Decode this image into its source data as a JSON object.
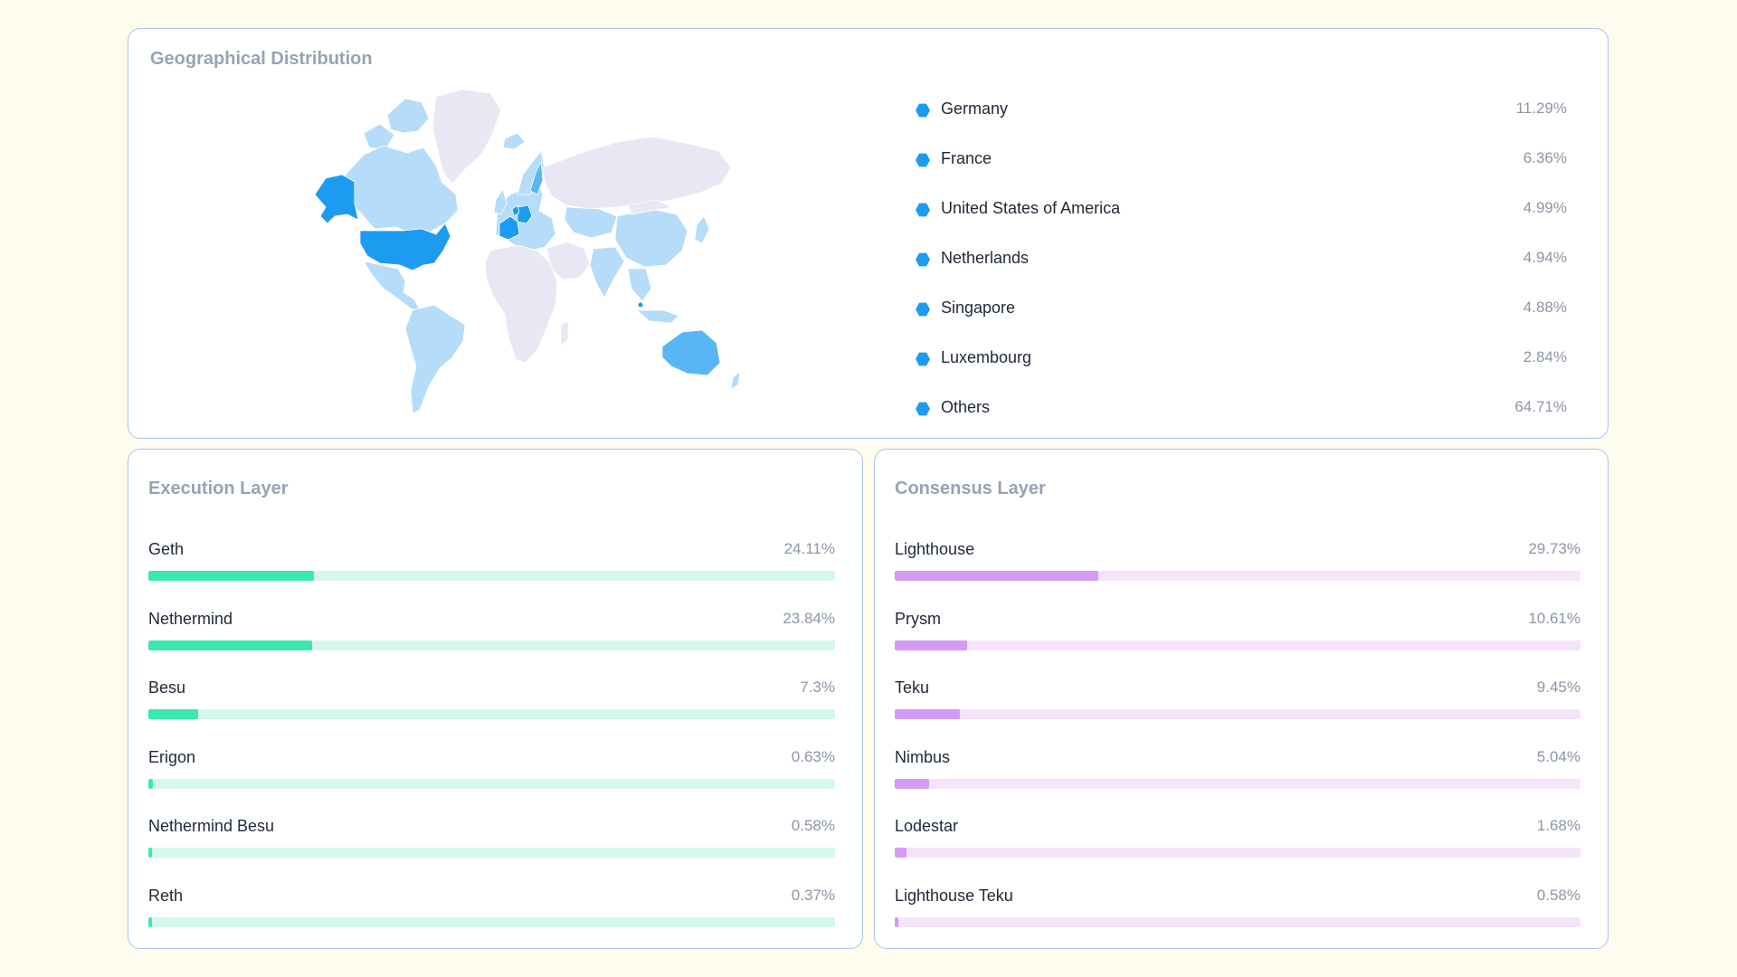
{
  "colors": {
    "background": "#fefcee",
    "map_dark": "#1d9bf0",
    "map_mid": "#59b6f4",
    "map_light": "#b5dcf9",
    "map_none": "#e7e8f4",
    "exec_fill": "#3de8b0",
    "exec_track": "#d6f8ec",
    "cons_fill": "#d49af5",
    "cons_track": "#f5e4fa"
  },
  "geo": {
    "title": "Geographical Distribution",
    "legend": [
      {
        "name": "Germany",
        "pct": "11.29%",
        "icon": "hexagon-icon"
      },
      {
        "name": "France",
        "pct": "6.36%",
        "icon": "hexagon-icon"
      },
      {
        "name": "United States of America",
        "pct": "4.99%",
        "icon": "hexagon-icon"
      },
      {
        "name": "Netherlands",
        "pct": "4.94%",
        "icon": "hexagon-icon"
      },
      {
        "name": "Singapore",
        "pct": "4.88%",
        "icon": "hexagon-icon"
      },
      {
        "name": "Luxembourg",
        "pct": "2.84%",
        "icon": "hexagon-icon"
      },
      {
        "name": "Others",
        "pct": "64.71%",
        "icon": "hexagon-icon"
      }
    ]
  },
  "execution": {
    "title": "Execution Layer",
    "clients": [
      {
        "name": "Geth",
        "pct": "24.11%",
        "value": 24.11
      },
      {
        "name": "Nethermind",
        "pct": "23.84%",
        "value": 23.84
      },
      {
        "name": "Besu",
        "pct": "7.3%",
        "value": 7.3
      },
      {
        "name": "Erigon",
        "pct": "0.63%",
        "value": 0.63
      },
      {
        "name": "Nethermind Besu",
        "pct": "0.58%",
        "value": 0.58
      },
      {
        "name": "Reth",
        "pct": "0.37%",
        "value": 0.37
      }
    ]
  },
  "consensus": {
    "title": "Consensus Layer",
    "clients": [
      {
        "name": "Lighthouse",
        "pct": "29.73%",
        "value": 29.73
      },
      {
        "name": "Prysm",
        "pct": "10.61%",
        "value": 10.61
      },
      {
        "name": "Teku",
        "pct": "9.45%",
        "value": 9.45
      },
      {
        "name": "Nimbus",
        "pct": "5.04%",
        "value": 5.04
      },
      {
        "name": "Lodestar",
        "pct": "1.68%",
        "value": 1.68
      },
      {
        "name": "Lighthouse Teku",
        "pct": "0.58%",
        "value": 0.58
      }
    ]
  }
}
